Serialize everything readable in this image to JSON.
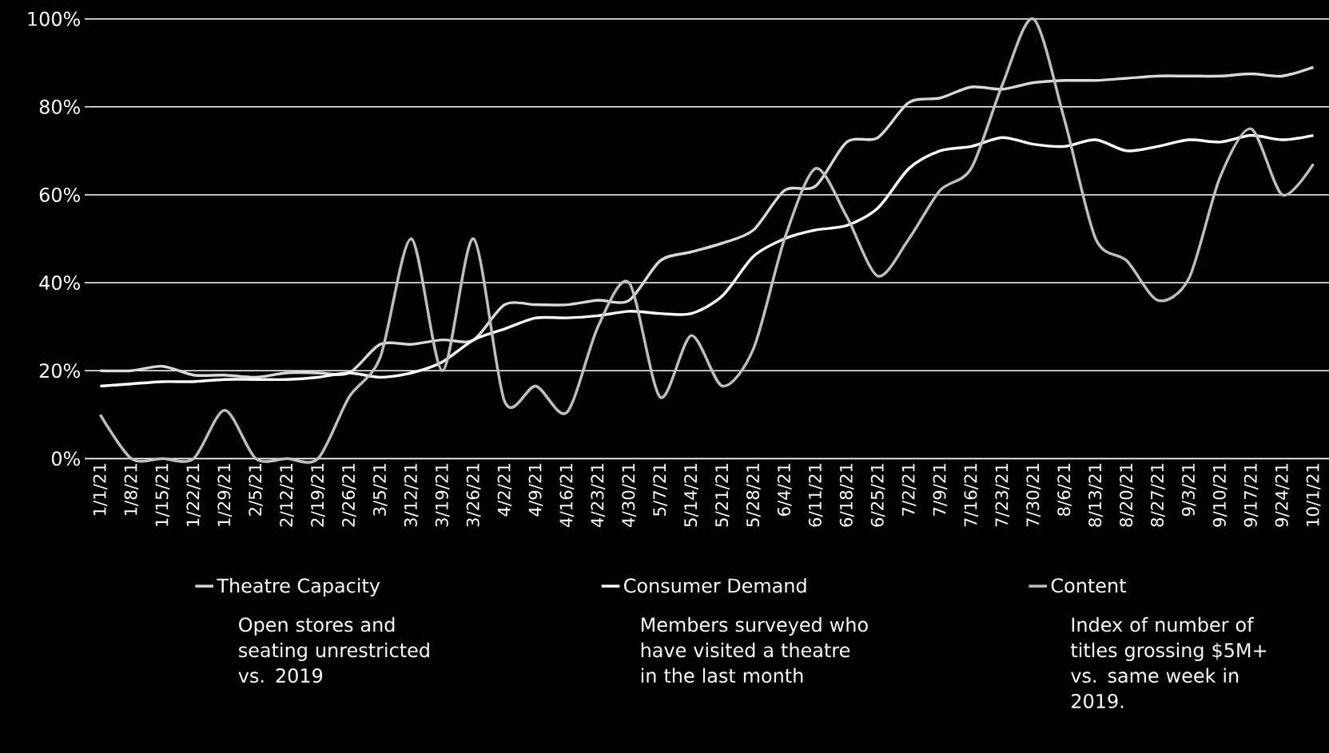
{
  "chart_data": {
    "type": "line",
    "categories": [
      "1/1/21",
      "1/8/21",
      "1/15/21",
      "1/22/21",
      "1/29/21",
      "2/5/21",
      "2/12/21",
      "2/19/21",
      "2/26/21",
      "3/5/21",
      "3/12/21",
      "3/19/21",
      "3/26/21",
      "4/2/21",
      "4/9/21",
      "4/16/21",
      "4/23/21",
      "4/30/21",
      "5/7/21",
      "5/14/21",
      "5/21/21",
      "5/28/21",
      "6/4/21",
      "6/11/21",
      "6/18/21",
      "6/25/21",
      "7/2/21",
      "7/9/21",
      "7/16/21",
      "7/23/21",
      "7/30/21",
      "8/6/21",
      "8/13/21",
      "8/20/21",
      "8/27/21",
      "9/3/21",
      "9/10/21",
      "9/17/21",
      "9/24/21",
      "10/1/21"
    ],
    "series": [
      {
        "name": "Theatre Capacity",
        "color": "#d9d9d9",
        "values": [
          20,
          20,
          21,
          19,
          19,
          18.5,
          19.5,
          19.5,
          19.5,
          26,
          26,
          27,
          27,
          35,
          35,
          35,
          36,
          36,
          45,
          47,
          49,
          52,
          61,
          62,
          72,
          73,
          81,
          82,
          84.5,
          84,
          85.5,
          86,
          86,
          86.5,
          87,
          87,
          87,
          87.5,
          87,
          89
        ]
      },
      {
        "name": "Consumer Demand",
        "color": "#ffffff",
        "values": [
          16.5,
          17,
          17.5,
          17.5,
          18,
          18,
          18,
          18.5,
          19.5,
          18.5,
          19.5,
          22,
          27,
          29.5,
          32,
          32,
          32.5,
          33.5,
          33,
          33,
          37,
          46,
          50,
          52,
          53,
          57,
          66,
          70,
          71,
          73,
          71.5,
          71,
          72.5,
          70,
          71,
          72.5,
          72,
          73.5,
          72.5,
          73.5
        ]
      },
      {
        "name": "Content",
        "color": "#bfbfbf",
        "values": [
          10,
          0,
          0,
          0,
          11,
          0,
          0,
          0,
          14,
          23,
          50,
          20,
          50,
          13,
          16.5,
          10.5,
          30,
          40,
          14,
          28,
          16.5,
          25,
          50,
          66,
          55,
          41.5,
          50,
          61,
          66,
          85,
          100,
          77,
          50,
          45,
          36,
          41,
          64,
          75,
          60,
          67
        ]
      }
    ],
    "ylim": [
      0,
      100
    ],
    "yticks": [
      {
        "value": 0,
        "label": "0%"
      },
      {
        "value": 20,
        "label": "20%"
      },
      {
        "value": 40,
        "label": "40%"
      },
      {
        "value": 60,
        "label": "60%"
      },
      {
        "value": 80,
        "label": "80%"
      },
      {
        "value": 100,
        "label": "100%"
      }
    ],
    "grid": "y",
    "legend": "bottom",
    "marker": "none",
    "line_style": "solid",
    "annotations": [
      "Open stores and seating unrestricted vs. 2019",
      "Members surveyed who have visited a theatre in the last month",
      "Index of number of titles grossing $5M+ vs. same week in 2019."
    ]
  }
}
